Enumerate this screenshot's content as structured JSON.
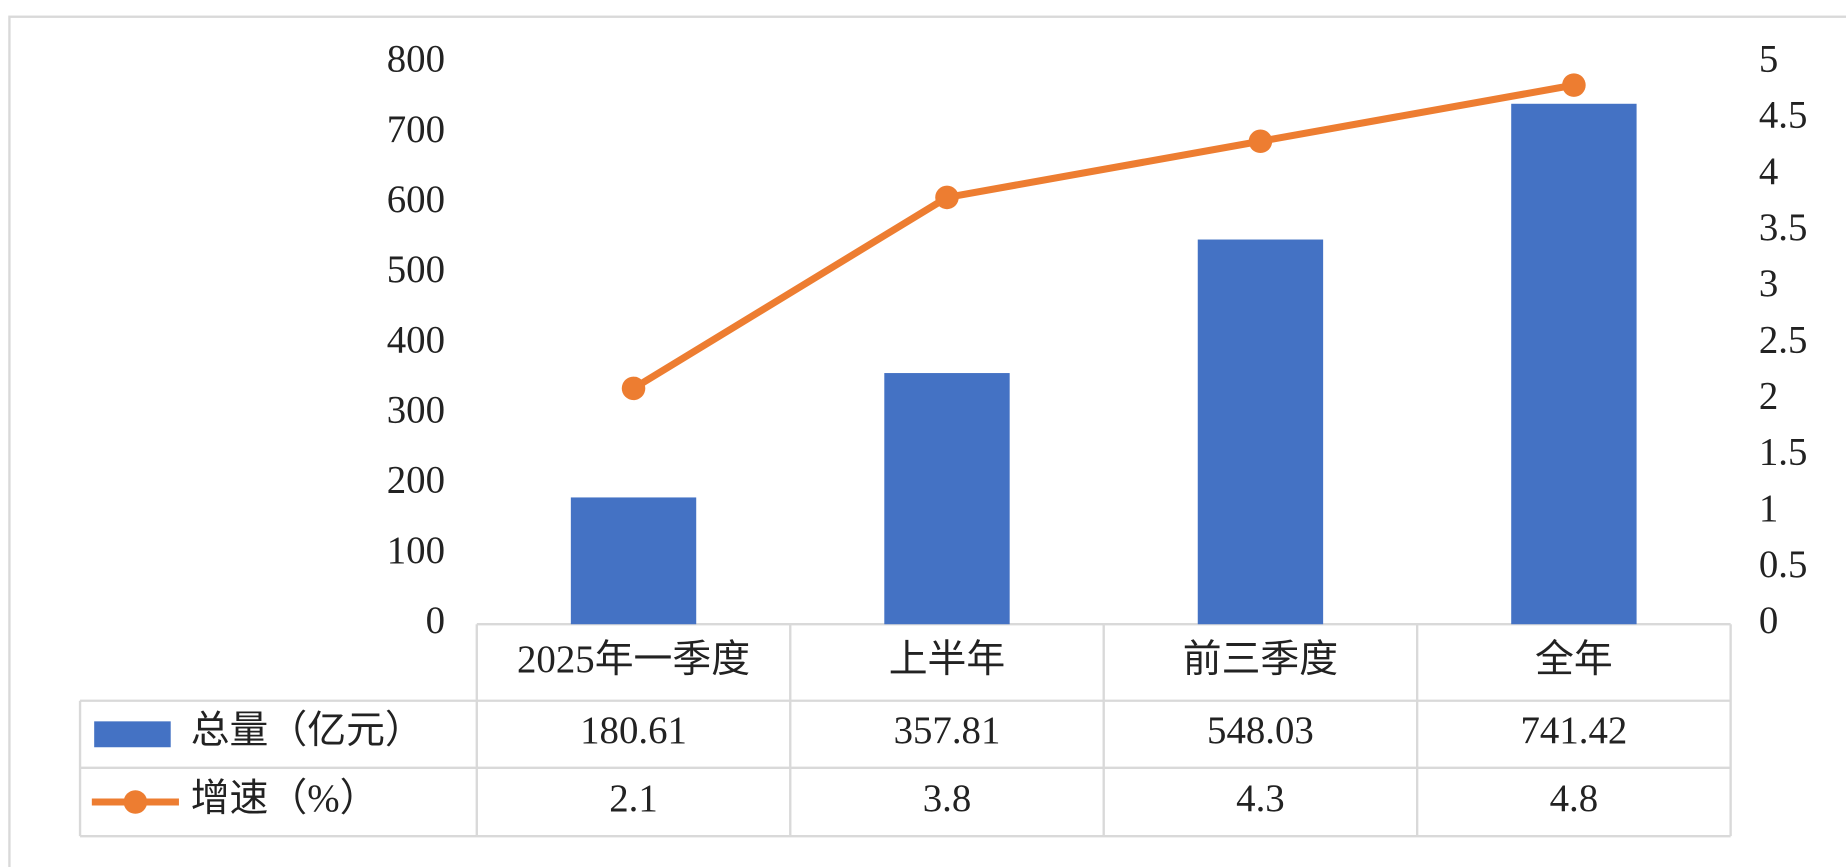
{
  "chart_data": {
    "type": "combo",
    "categories": [
      "2025年一季度",
      "上半年",
      "前三季度",
      "全年"
    ],
    "series": [
      {
        "name": "总量（亿元）",
        "type": "bar",
        "color": "#4472c4",
        "values": [
          180.61,
          357.81,
          548.03,
          741.42
        ]
      },
      {
        "name": "增速（%）",
        "type": "line",
        "axis": "y2",
        "color": "#ed7d31",
        "values": [
          2.1,
          3.8,
          4.3,
          4.8
        ]
      }
    ],
    "ylim": [
      0,
      800
    ],
    "yticks": [
      0,
      100,
      200,
      300,
      400,
      500,
      600,
      700,
      800
    ],
    "y2lim": [
      0,
      5
    ],
    "y2ticks": [
      0,
      0.5,
      1,
      1.5,
      2,
      2.5,
      3,
      3.5,
      4,
      4.5,
      5
    ],
    "grid": false,
    "legend": "table"
  }
}
